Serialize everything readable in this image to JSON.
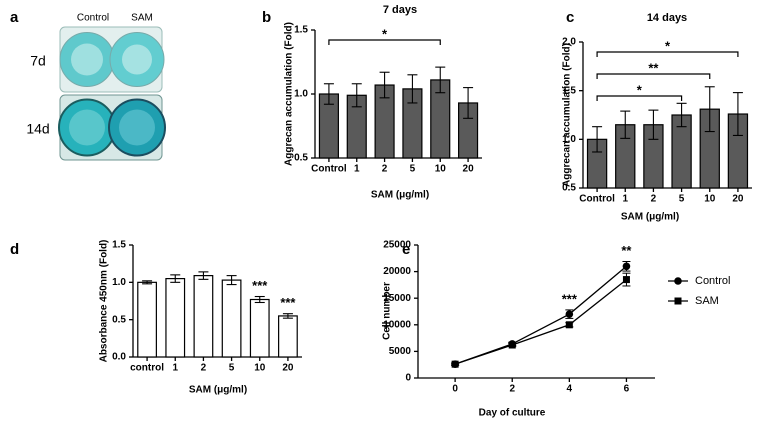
{
  "panels": {
    "a": {
      "label": "a",
      "columns": [
        "Control",
        "SAM"
      ],
      "rows": [
        "7d",
        "14d"
      ]
    }
  },
  "chart_data": [
    {
      "type": "bar",
      "label": "b",
      "title": "7 days",
      "xlabel": "SAM (μg/ml)",
      "ylabel": "Aggrecan accumulation (Fold)",
      "categories": [
        "Control",
        "1",
        "2",
        "5",
        "10",
        "20"
      ],
      "values": [
        1.0,
        0.99,
        1.07,
        1.04,
        1.11,
        0.93
      ],
      "errors": [
        0.08,
        0.09,
        0.1,
        0.11,
        0.1,
        0.12
      ],
      "color": "#5a5a5a",
      "edgecolor": "#000000",
      "ylim": [
        0.5,
        1.5
      ],
      "yticks": [
        0.5,
        {
          "value": 1.0,
          "label": "1.0"
        },
        1.5
      ],
      "annotations": [
        {
          "text": "*",
          "from": "Control",
          "to": "10"
        }
      ]
    },
    {
      "type": "bar",
      "label": "c",
      "title": "14 days",
      "xlabel": "SAM (μg/ml)",
      "ylabel": "Aggrecan accumulation (Fold)",
      "categories": [
        "Control",
        "1",
        "2",
        "5",
        "10",
        "20"
      ],
      "values": [
        1.0,
        1.15,
        1.15,
        1.25,
        1.31,
        1.26
      ],
      "errors": [
        0.13,
        0.14,
        0.15,
        0.12,
        0.23,
        0.22
      ],
      "color": "#5a5a5a",
      "edgecolor": "#000000",
      "ylim": [
        0.5,
        2.0
      ],
      "yticks": [
        0.5,
        {
          "value": 1.0,
          "label": "1.0"
        },
        1.5,
        {
          "value": 2.0,
          "label": "2.0"
        }
      ],
      "annotations": [
        {
          "text": "*",
          "from": "Control",
          "to": "20"
        },
        {
          "text": "**",
          "from": "Control",
          "to": "10"
        },
        {
          "text": "*",
          "from": "Control",
          "to": "5"
        }
      ]
    },
    {
      "type": "bar",
      "label": "d",
      "xlabel": "SAM (μg/ml)",
      "ylabel": "Absorbance 450nm (Fold)",
      "categories": [
        "control",
        "1",
        "2",
        "5",
        "10",
        "20"
      ],
      "values": [
        1.0,
        1.05,
        1.09,
        1.03,
        0.77,
        0.55
      ],
      "errors": [
        0.02,
        0.05,
        0.05,
        0.06,
        0.04,
        0.03
      ],
      "color": "#ffffff",
      "edgecolor": "#000000",
      "ylim": [
        0,
        1.5
      ],
      "yticks": [
        {
          "value": 0,
          "label": "0.0"
        },
        0.5,
        {
          "value": 1.0,
          "label": "1.0"
        },
        1.5
      ],
      "annotations": [
        {
          "text": "***",
          "at": "10"
        },
        {
          "text": "***",
          "at": "20"
        }
      ]
    },
    {
      "type": "line",
      "label": "e",
      "xlabel": "Day of culture",
      "ylabel": "Cell number",
      "x": [
        0,
        2,
        4,
        6
      ],
      "series": [
        {
          "name": "Control",
          "color": "#000000",
          "marker": "circle",
          "values": [
            2600,
            6400,
            12000,
            21000
          ],
          "errors": [
            200,
            300,
            800,
            900
          ]
        },
        {
          "name": "SAM",
          "color": "#000000",
          "marker": "square",
          "values": [
            2600,
            6200,
            10000,
            18500
          ],
          "errors": [
            200,
            300,
            400,
            1200
          ]
        }
      ],
      "xlim": [
        -1.3,
        7
      ],
      "xticks": [
        0,
        2,
        4,
        6
      ],
      "ylim": [
        0,
        25000
      ],
      "yticks": [
        0,
        5000,
        10000,
        15000,
        20000,
        25000
      ],
      "legend": "right",
      "annotations": [
        {
          "text": "***",
          "at": 4
        },
        {
          "text": "**",
          "at": 6
        }
      ]
    }
  ]
}
